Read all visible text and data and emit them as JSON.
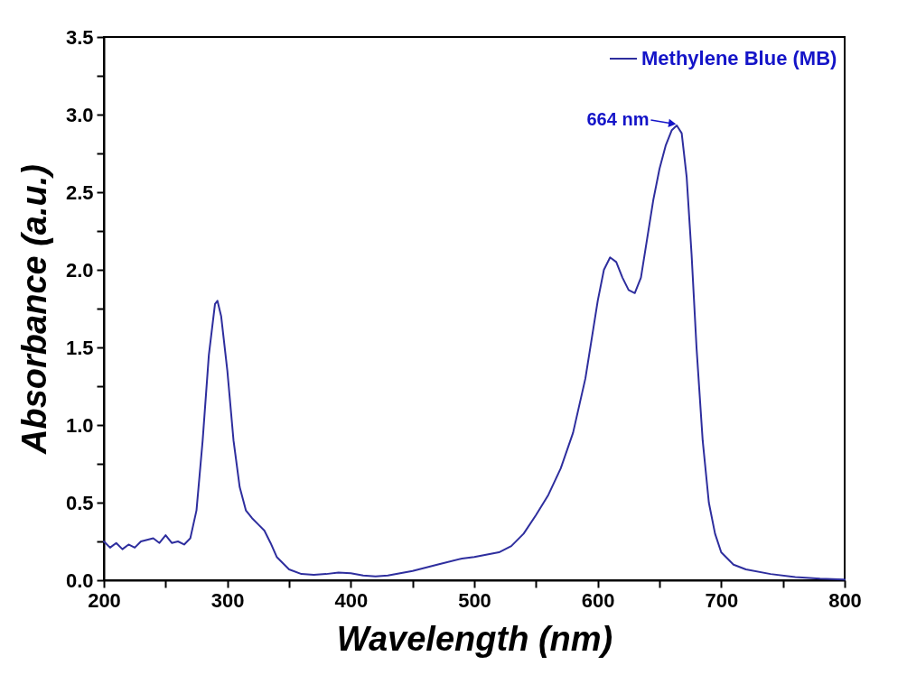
{
  "chart_data": {
    "type": "line",
    "xlabel": "Wavelength (nm)",
    "ylabel": "Absorbance (a.u.)",
    "xlim": [
      200,
      800
    ],
    "ylim": [
      0,
      3.5
    ],
    "xticks": [
      200,
      {
        "value": 250,
        "label": null
      },
      300,
      {
        "value": 350,
        "label": null
      },
      400,
      {
        "value": 450,
        "label": null
      },
      500,
      {
        "value": 550,
        "label": null
      },
      600,
      {
        "value": 650,
        "label": null
      },
      700,
      {
        "value": 750,
        "label": null
      },
      800
    ],
    "yticks": [
      {
        "value": 0,
        "label": "0.0"
      },
      {
        "value": 0.25,
        "label": null
      },
      0.5,
      {
        "value": 0.75,
        "label": null
      },
      {
        "value": 1,
        "label": "1.0"
      },
      {
        "value": 1.25,
        "label": null
      },
      1.5,
      {
        "value": 1.75,
        "label": null
      },
      {
        "value": 2,
        "label": "2.0"
      },
      {
        "value": 2.25,
        "label": null
      },
      2.5,
      {
        "value": 2.75,
        "label": null
      },
      {
        "value": 3,
        "label": "3.0"
      },
      {
        "value": 3.25,
        "label": null
      },
      3.5
    ],
    "grid": false,
    "legend": "top right",
    "marker": "none",
    "line_style": "solid",
    "annotations": [
      {
        "text": "664 nm",
        "x": 664,
        "y": 2.93
      }
    ],
    "series": [
      {
        "name": "Methylene Blue (MB)",
        "color": "#2e2e9e",
        "x": [
          200,
          205,
          210,
          215,
          220,
          225,
          230,
          235,
          240,
          245,
          250,
          255,
          260,
          265,
          270,
          275,
          280,
          285,
          290,
          292,
          295,
          300,
          305,
          310,
          315,
          320,
          325,
          330,
          335,
          340,
          350,
          360,
          370,
          380,
          390,
          400,
          410,
          420,
          430,
          450,
          470,
          490,
          500,
          520,
          530,
          540,
          550,
          560,
          570,
          580,
          590,
          600,
          605,
          610,
          615,
          620,
          625,
          630,
          635,
          640,
          645,
          650,
          655,
          660,
          664,
          668,
          672,
          676,
          680,
          685,
          690,
          695,
          700,
          710,
          720,
          740,
          760,
          780,
          800
        ],
        "values": [
          0.25,
          0.21,
          0.24,
          0.2,
          0.23,
          0.21,
          0.25,
          0.26,
          0.27,
          0.24,
          0.29,
          0.24,
          0.25,
          0.23,
          0.27,
          0.45,
          0.9,
          1.45,
          1.78,
          1.8,
          1.7,
          1.35,
          0.9,
          0.6,
          0.45,
          0.4,
          0.36,
          0.32,
          0.24,
          0.15,
          0.07,
          0.04,
          0.035,
          0.04,
          0.05,
          0.045,
          0.03,
          0.025,
          0.03,
          0.06,
          0.1,
          0.14,
          0.15,
          0.18,
          0.22,
          0.3,
          0.42,
          0.55,
          0.72,
          0.95,
          1.3,
          1.8,
          2.0,
          2.08,
          2.05,
          1.95,
          1.87,
          1.85,
          1.95,
          2.2,
          2.45,
          2.65,
          2.8,
          2.9,
          2.93,
          2.88,
          2.6,
          2.1,
          1.5,
          0.9,
          0.5,
          0.3,
          0.18,
          0.1,
          0.07,
          0.04,
          0.02,
          0.01,
          0.005
        ]
      }
    ]
  }
}
